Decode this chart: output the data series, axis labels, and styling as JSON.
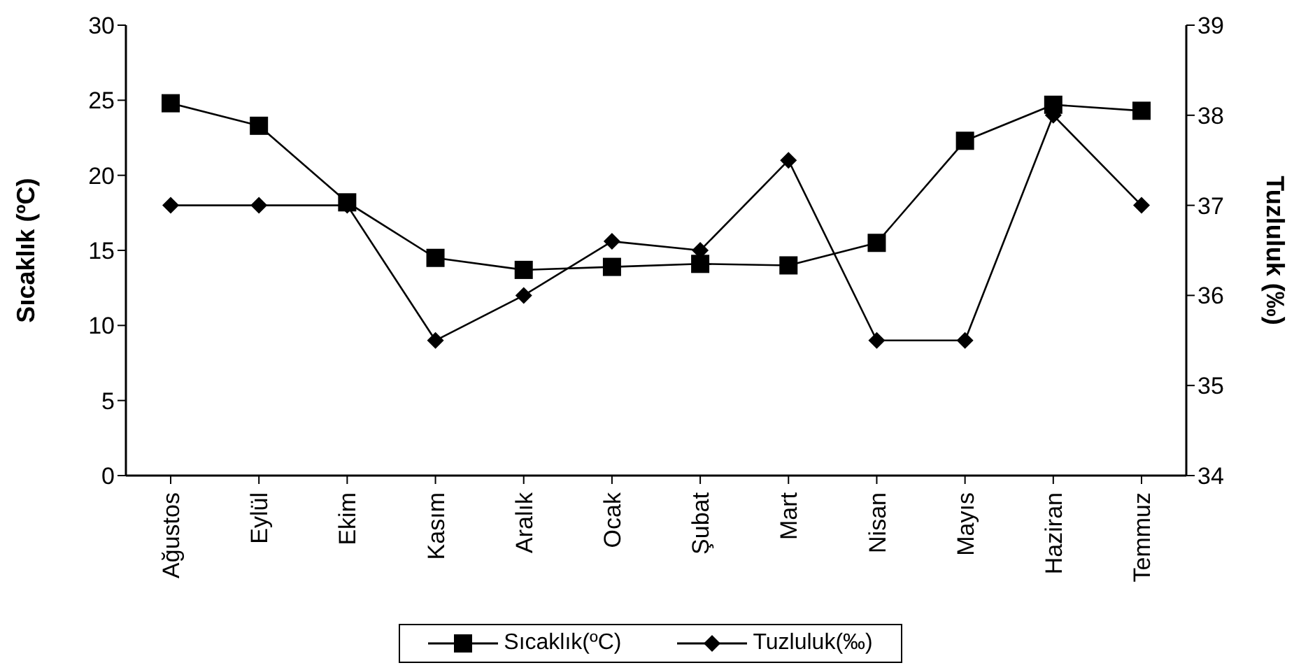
{
  "chart_data": {
    "type": "line",
    "ylabel": "Sıcaklık (ºC)",
    "y2label": "Tuzluluk (‰)",
    "categories": [
      "Ağustos",
      "Eylül",
      "Ekim",
      "Kasım",
      "Aralık",
      "Ocak",
      "Şubat",
      "Mart",
      "Nisan",
      "Mayıs",
      "Haziran",
      "Temmuz"
    ],
    "series": [
      {
        "name": "Sıcaklık(ºC)",
        "color": "#000000",
        "marker": "square",
        "values": [
          24.8,
          23.3,
          18.2,
          14.5,
          13.7,
          13.9,
          14.1,
          14.0,
          15.5,
          22.3,
          24.7,
          24.3
        ]
      },
      {
        "name": "Tuzluluk(‰)",
        "color": "#000000",
        "marker": "diamond",
        "axis": "y2",
        "values": [
          37,
          37,
          37,
          35.5,
          36,
          36.6,
          36.5,
          37.5,
          35.5,
          35.5,
          38,
          37
        ]
      }
    ],
    "ylim": [
      0,
      30
    ],
    "yticks": [
      0,
      5,
      10,
      15,
      20,
      25,
      30
    ],
    "y2lim": [
      34,
      39
    ],
    "y2ticks": [
      34,
      35,
      36,
      37,
      38,
      39
    ],
    "grid": false,
    "legend": "bottom",
    "line_style": "solid"
  }
}
